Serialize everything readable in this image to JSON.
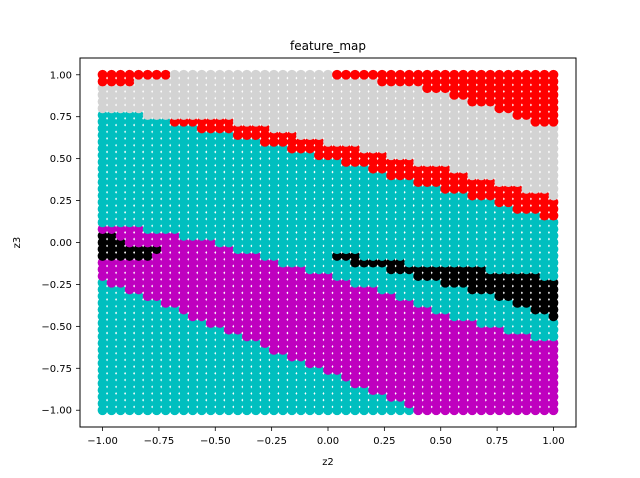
{
  "chart_data": {
    "type": "scatter",
    "title": "feature_map",
    "xlabel": "z2",
    "ylabel": "z3",
    "xlim": [
      -1.1,
      1.1
    ],
    "ylim": [
      -1.1,
      1.1
    ],
    "xticks": [
      -1.0,
      -0.75,
      -0.5,
      -0.25,
      0.0,
      0.25,
      0.5,
      0.75,
      1.0
    ],
    "xtick_labels": [
      "−1.00",
      "−0.75",
      "−0.50",
      "−0.25",
      "0.00",
      "0.25",
      "0.50",
      "0.75",
      "1.00"
    ],
    "yticks": [
      -1.0,
      -0.75,
      -0.5,
      -0.25,
      0.0,
      0.25,
      0.5,
      0.75,
      1.0
    ],
    "ytick_labels": [
      "−1.00",
      "−0.75",
      "−0.50",
      "−0.25",
      "0.00",
      "0.25",
      "0.50",
      "0.75",
      "1.00"
    ],
    "grid": false,
    "series": [
      {
        "color": "#00bfbf",
        "region": "background",
        "boundary": null
      },
      {
        "color": "#bf00bf",
        "region": "band",
        "lower": [
          [
            -1.0,
            -0.22
          ],
          [
            0.4,
            -1.0
          ],
          [
            1.0,
            -1.0
          ]
        ],
        "upper": [
          [
            -1.0,
            0.12
          ],
          [
            -0.6,
            0.03
          ],
          [
            -0.2,
            -0.12
          ],
          [
            0.2,
            -0.27
          ],
          [
            0.6,
            -0.46
          ],
          [
            1.0,
            -0.6
          ]
        ]
      },
      {
        "color": "#000000",
        "region": "band",
        "lower": [
          [
            -1.0,
            -0.1
          ],
          [
            -0.7,
            -0.07
          ]
        ],
        "upper": [
          [
            -1.0,
            0.08
          ],
          [
            -0.9,
            0.0
          ],
          [
            -0.8,
            -0.03
          ],
          [
            -0.7,
            -0.05
          ]
        ]
      },
      {
        "color": "#000000",
        "region": "band",
        "lower": [
          [
            0.02,
            -0.1
          ],
          [
            0.4,
            -0.2
          ],
          [
            0.7,
            -0.3
          ],
          [
            1.0,
            -0.45
          ]
        ],
        "upper": [
          [
            0.02,
            -0.06
          ],
          [
            0.4,
            -0.13
          ],
          [
            0.7,
            -0.16
          ],
          [
            1.0,
            -0.21
          ]
        ]
      },
      {
        "color": "#ff0000",
        "region": "band",
        "lower": [
          [
            -1.0,
            0.82
          ],
          [
            -0.5,
            0.66
          ],
          [
            0.0,
            0.5
          ],
          [
            0.5,
            0.32
          ],
          [
            1.0,
            0.14
          ]
        ],
        "upper": [
          [
            -1.0,
            1.0
          ],
          [
            1.0,
            1.0
          ]
        ]
      },
      {
        "color": "#d3d3d3",
        "region": "band",
        "lower": [
          [
            -1.0,
            0.79
          ],
          [
            -0.7,
            0.74
          ],
          [
            -0.5,
            0.75
          ],
          [
            0.0,
            0.6
          ],
          [
            0.5,
            0.45
          ],
          [
            1.0,
            0.27
          ]
        ],
        "upper": [
          [
            -1.0,
            0.92
          ],
          [
            -0.7,
            1.0
          ],
          [
            0.0,
            1.0
          ],
          [
            0.5,
            0.9
          ],
          [
            1.0,
            0.68
          ]
        ]
      }
    ]
  }
}
